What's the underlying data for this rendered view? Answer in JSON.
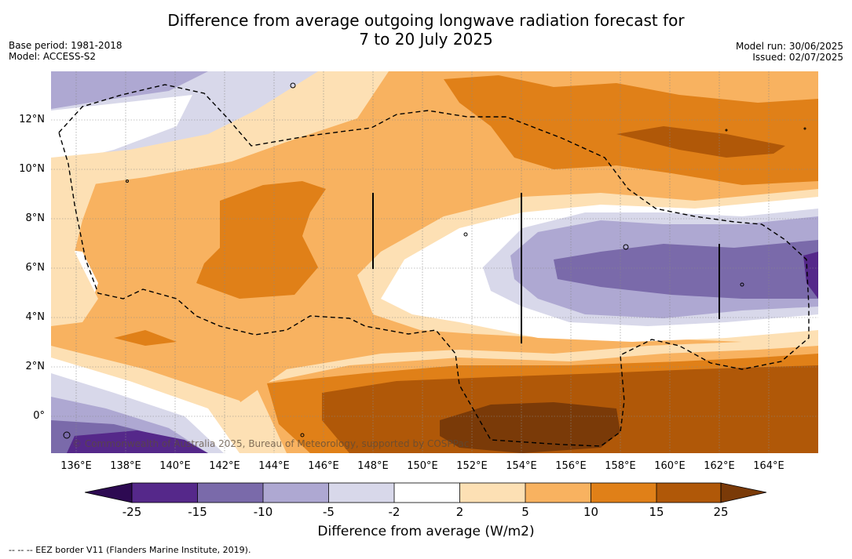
{
  "title": {
    "line1": "Difference from average outgoing longwave radiation forecast for",
    "line2": "7 to 20 July 2025"
  },
  "meta": {
    "base_period": "Base period: 1981-2018",
    "model": "Model: ACCESS-S2",
    "model_run": "Model run: 30/06/2025",
    "issued": "Issued: 02/07/2025"
  },
  "map": {
    "lat_labels": [
      "12°N",
      "10°N",
      "8°N",
      "6°N",
      "4°N",
      "2°N",
      "0°"
    ],
    "lon_labels": [
      "136°E",
      "138°E",
      "140°E",
      "142°E",
      "144°E",
      "146°E",
      "148°E",
      "150°E",
      "152°E",
      "154°E",
      "156°E",
      "158°E",
      "160°E",
      "162°E",
      "164°E"
    ],
    "copyright": "© Commonwealth of Australia 2025, Bureau of Meteorology, supported by COSPPac",
    "colors": {
      "n25": "#2d0a52",
      "n15": "#55288a",
      "n10": "#7a6aaa",
      "n5": "#aea8d2",
      "n2": "#d8d8ea",
      "p0": "#ffffff",
      "p2": "#fde0b4",
      "p5": "#f8b260",
      "p10": "#e08018",
      "p15": "#b05808",
      "p25": "#7a3a08"
    }
  },
  "colorbar": {
    "ticks": [
      "-25",
      "-15",
      "-10",
      "-5",
      "-2",
      "2",
      "5",
      "10",
      "15",
      "25"
    ],
    "label": "Difference from average (W/m2)"
  },
  "footnote": "--  --  -- EEZ border V11 (Flanders Marine Institute, 2019)."
}
